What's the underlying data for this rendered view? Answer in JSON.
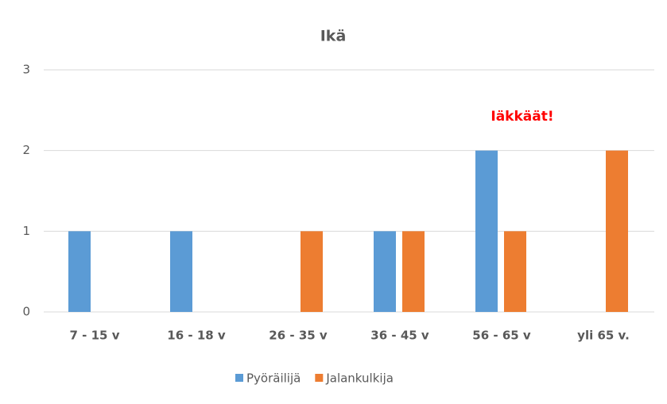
{
  "chart_data": {
    "type": "bar",
    "title": "Ikä",
    "annotation": "Iäkkäät!",
    "annotation_color": "#ff0000",
    "categories": [
      "7 - 15 v",
      "16 - 18 v",
      "26 - 35 v",
      "36 - 45 v",
      "56 - 65 v",
      "yli 65 v."
    ],
    "series": [
      {
        "name": "Pyöräilijä",
        "color": "#5b9bd5",
        "values": [
          1,
          1,
          0,
          1,
          2,
          0
        ]
      },
      {
        "name": "Jalankulkija",
        "color": "#ed7d31",
        "values": [
          0,
          0,
          1,
          1,
          1,
          2
        ]
      }
    ],
    "ylim": [
      0,
      3
    ],
    "yticks": [
      0,
      1,
      2,
      3
    ],
    "grid": true,
    "legend": "bottom"
  }
}
